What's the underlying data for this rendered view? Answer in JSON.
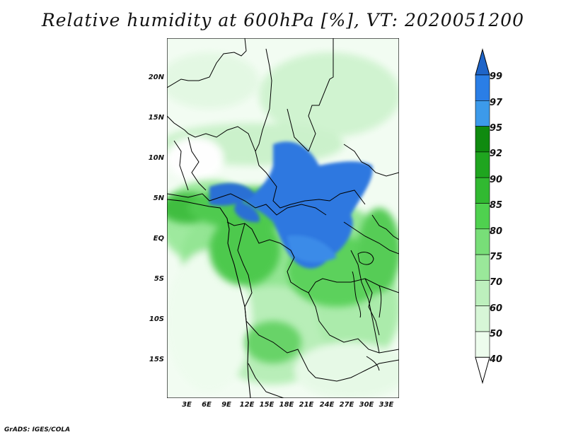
{
  "title": "Relative humidity at 600hPa [%], VT: 2020051200",
  "credit": "GrADS: IGES/COLA",
  "map": {
    "lat_labels": [
      "20N",
      "15N",
      "10N",
      "5N",
      "EQ",
      "5S",
      "10S",
      "15S"
    ],
    "lon_labels": [
      "3E",
      "6E",
      "9E",
      "12E",
      "15E",
      "18E",
      "21E",
      "24E",
      "27E",
      "30E",
      "33E"
    ],
    "land_border_color": "#000000"
  },
  "colorbar": {
    "levels": [
      "99",
      "97",
      "95",
      "92",
      "90",
      "85",
      "80",
      "75",
      "70",
      "60",
      "50",
      "40"
    ],
    "colors": [
      "#1e64c8",
      "#2a7ee6",
      "#3c9aea",
      "#0f8a0f",
      "#1fa51f",
      "#31b931",
      "#4fd14f",
      "#78de78",
      "#9ae89a",
      "#bdf0bd",
      "#d7f6d7",
      "#edfced",
      "#ffffff"
    ]
  }
}
